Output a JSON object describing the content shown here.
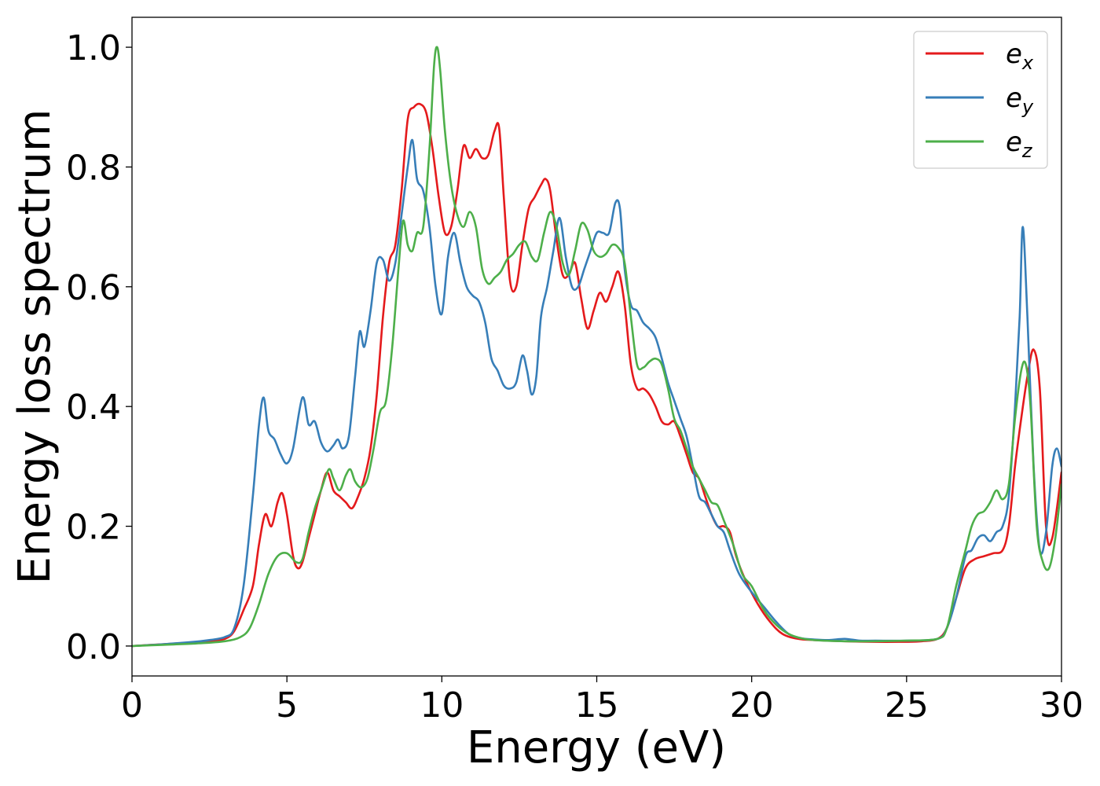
{
  "chart_data": {
    "type": "line",
    "xlabel": "Energy (eV)",
    "ylabel": "Energy loss spectrum",
    "xlim": [
      0,
      30
    ],
    "ylim": [
      -0.05,
      1.05
    ],
    "xticks": [
      0,
      5,
      10,
      15,
      20,
      25,
      30
    ],
    "xtick_labels": [
      "0",
      "5",
      "10",
      "15",
      "20",
      "25",
      "30"
    ],
    "yticks": [
      0.0,
      0.2,
      0.4,
      0.6,
      0.8,
      1.0
    ],
    "ytick_labels": [
      "0.0",
      "0.2",
      "0.4",
      "0.6",
      "0.8",
      "1.0"
    ],
    "grid": false,
    "legend_position": "top-right",
    "series": [
      {
        "name": "e_x",
        "label_base": "e",
        "label_sub": "x",
        "color": "#e41a1c",
        "x": [
          0,
          1,
          2,
          2.5,
          3,
          3.3,
          3.6,
          3.9,
          4.1,
          4.3,
          4.5,
          4.7,
          4.85,
          5.0,
          5.2,
          5.35,
          5.5,
          5.7,
          5.9,
          6.1,
          6.3,
          6.5,
          6.7,
          6.9,
          7.1,
          7.3,
          7.5,
          7.7,
          7.9,
          8.1,
          8.3,
          8.5,
          8.7,
          8.9,
          9.1,
          9.3,
          9.5,
          9.7,
          9.9,
          10.1,
          10.3,
          10.5,
          10.7,
          10.9,
          11.1,
          11.3,
          11.5,
          11.7,
          11.85,
          12.0,
          12.2,
          12.4,
          12.6,
          12.8,
          13.0,
          13.2,
          13.35,
          13.5,
          13.7,
          13.9,
          14.1,
          14.3,
          14.5,
          14.7,
          14.9,
          15.1,
          15.3,
          15.5,
          15.7,
          15.9,
          16.1,
          16.3,
          16.5,
          16.7,
          16.9,
          17.1,
          17.3,
          17.5,
          17.7,
          17.9,
          18.1,
          18.3,
          18.5,
          18.7,
          18.9,
          19.1,
          19.3,
          19.5,
          19.8,
          20.2,
          20.6,
          21.0,
          21.5,
          22,
          23,
          24,
          25,
          25.5,
          26,
          26.3,
          26.6,
          26.9,
          27.2,
          27.5,
          27.8,
          28.1,
          28.3,
          28.5,
          28.7,
          28.9,
          29.1,
          29.3,
          29.5,
          29.7,
          30
        ],
        "y": [
          0.0,
          0.003,
          0.006,
          0.008,
          0.012,
          0.025,
          0.06,
          0.1,
          0.17,
          0.22,
          0.2,
          0.24,
          0.255,
          0.22,
          0.15,
          0.13,
          0.14,
          0.18,
          0.22,
          0.26,
          0.29,
          0.26,
          0.25,
          0.24,
          0.23,
          0.25,
          0.28,
          0.33,
          0.42,
          0.55,
          0.64,
          0.67,
          0.76,
          0.88,
          0.9,
          0.905,
          0.89,
          0.83,
          0.75,
          0.69,
          0.7,
          0.76,
          0.835,
          0.815,
          0.83,
          0.815,
          0.82,
          0.86,
          0.865,
          0.75,
          0.61,
          0.6,
          0.67,
          0.73,
          0.75,
          0.77,
          0.78,
          0.76,
          0.68,
          0.62,
          0.62,
          0.64,
          0.58,
          0.53,
          0.56,
          0.59,
          0.575,
          0.6,
          0.625,
          0.57,
          0.47,
          0.43,
          0.43,
          0.42,
          0.4,
          0.375,
          0.37,
          0.375,
          0.35,
          0.32,
          0.29,
          0.28,
          0.25,
          0.22,
          0.2,
          0.2,
          0.19,
          0.15,
          0.11,
          0.07,
          0.04,
          0.02,
          0.012,
          0.01,
          0.008,
          0.007,
          0.007,
          0.008,
          0.012,
          0.03,
          0.08,
          0.13,
          0.145,
          0.15,
          0.155,
          0.16,
          0.2,
          0.3,
          0.38,
          0.45,
          0.495,
          0.43,
          0.2,
          0.18,
          0.29
        ]
      },
      {
        "name": "e_y",
        "label_base": "e",
        "label_sub": "y",
        "color": "#377eb8",
        "x": [
          0,
          1,
          2,
          2.5,
          3,
          3.3,
          3.6,
          3.9,
          4.1,
          4.25,
          4.4,
          4.6,
          4.8,
          5.0,
          5.2,
          5.5,
          5.7,
          5.9,
          6.1,
          6.3,
          6.5,
          6.65,
          6.8,
          7.0,
          7.2,
          7.35,
          7.5,
          7.7,
          7.9,
          8.1,
          8.3,
          8.5,
          8.7,
          8.9,
          9.05,
          9.2,
          9.4,
          9.6,
          9.8,
          10.0,
          10.2,
          10.4,
          10.6,
          10.8,
          11.0,
          11.2,
          11.4,
          11.6,
          11.8,
          12.0,
          12.2,
          12.4,
          12.6,
          12.75,
          12.9,
          13.05,
          13.2,
          13.4,
          13.6,
          13.8,
          14.0,
          14.2,
          14.4,
          14.6,
          14.8,
          15.0,
          15.2,
          15.4,
          15.6,
          15.75,
          15.9,
          16.1,
          16.3,
          16.5,
          16.7,
          16.9,
          17.1,
          17.3,
          17.5,
          17.7,
          17.9,
          18.1,
          18.3,
          18.5,
          18.7,
          18.9,
          19.1,
          19.3,
          19.6,
          20.0,
          20.4,
          20.8,
          21.2,
          21.6,
          22,
          22.5,
          23,
          23.5,
          24,
          25,
          26,
          26.3,
          26.6,
          26.9,
          27.1,
          27.3,
          27.5,
          27.7,
          27.9,
          28.1,
          28.3,
          28.5,
          28.65,
          28.75,
          28.9,
          29.1,
          29.3,
          29.5,
          29.7,
          29.85,
          30
        ],
        "y": [
          0.0,
          0.003,
          0.007,
          0.01,
          0.015,
          0.03,
          0.1,
          0.25,
          0.37,
          0.415,
          0.36,
          0.345,
          0.32,
          0.305,
          0.33,
          0.415,
          0.37,
          0.375,
          0.34,
          0.325,
          0.335,
          0.345,
          0.33,
          0.35,
          0.45,
          0.525,
          0.5,
          0.56,
          0.64,
          0.645,
          0.61,
          0.64,
          0.72,
          0.8,
          0.845,
          0.78,
          0.76,
          0.7,
          0.6,
          0.555,
          0.65,
          0.69,
          0.64,
          0.6,
          0.585,
          0.575,
          0.54,
          0.48,
          0.46,
          0.435,
          0.43,
          0.44,
          0.485,
          0.46,
          0.42,
          0.45,
          0.55,
          0.6,
          0.66,
          0.715,
          0.65,
          0.6,
          0.6,
          0.63,
          0.66,
          0.69,
          0.69,
          0.69,
          0.74,
          0.73,
          0.63,
          0.57,
          0.56,
          0.54,
          0.53,
          0.515,
          0.48,
          0.44,
          0.41,
          0.38,
          0.35,
          0.3,
          0.25,
          0.24,
          0.22,
          0.2,
          0.19,
          0.16,
          0.12,
          0.09,
          0.065,
          0.04,
          0.02,
          0.013,
          0.011,
          0.01,
          0.012,
          0.009,
          0.009,
          0.009,
          0.012,
          0.03,
          0.08,
          0.15,
          0.16,
          0.18,
          0.185,
          0.175,
          0.19,
          0.2,
          0.25,
          0.4,
          0.55,
          0.7,
          0.55,
          0.3,
          0.16,
          0.19,
          0.3,
          0.33,
          0.3
        ]
      },
      {
        "name": "e_z",
        "label_base": "e",
        "label_sub": "z",
        "color": "#4daf4a",
        "x": [
          0,
          1,
          2,
          3,
          3.5,
          3.8,
          4.1,
          4.4,
          4.7,
          5.0,
          5.3,
          5.5,
          5.7,
          5.9,
          6.1,
          6.35,
          6.5,
          6.7,
          6.9,
          7.05,
          7.2,
          7.4,
          7.6,
          7.8,
          8.0,
          8.2,
          8.4,
          8.6,
          8.75,
          8.9,
          9.05,
          9.2,
          9.4,
          9.6,
          9.75,
          9.85,
          9.95,
          10.1,
          10.3,
          10.5,
          10.7,
          10.9,
          11.1,
          11.3,
          11.5,
          11.7,
          11.9,
          12.1,
          12.3,
          12.5,
          12.7,
          12.9,
          13.1,
          13.3,
          13.5,
          13.7,
          13.9,
          14.1,
          14.3,
          14.5,
          14.7,
          14.9,
          15.1,
          15.3,
          15.5,
          15.7,
          15.9,
          16.1,
          16.3,
          16.5,
          16.7,
          16.9,
          17.1,
          17.3,
          17.5,
          17.7,
          17.9,
          18.1,
          18.3,
          18.5,
          18.7,
          18.9,
          19.1,
          19.4,
          19.7,
          20.0,
          20.4,
          20.8,
          21.2,
          21.6,
          22,
          23,
          24,
          25,
          26,
          26.3,
          26.6,
          26.9,
          27.1,
          27.3,
          27.5,
          27.7,
          27.9,
          28.1,
          28.3,
          28.5,
          28.7,
          28.85,
          29.0,
          29.2,
          29.4,
          29.6,
          29.8,
          30
        ],
        "y": [
          0.0,
          0.002,
          0.004,
          0.008,
          0.015,
          0.03,
          0.07,
          0.12,
          0.15,
          0.155,
          0.14,
          0.145,
          0.19,
          0.23,
          0.26,
          0.295,
          0.28,
          0.26,
          0.285,
          0.295,
          0.275,
          0.265,
          0.28,
          0.33,
          0.39,
          0.41,
          0.5,
          0.63,
          0.71,
          0.67,
          0.66,
          0.69,
          0.7,
          0.83,
          0.97,
          1.0,
          0.96,
          0.86,
          0.77,
          0.72,
          0.7,
          0.725,
          0.7,
          0.63,
          0.605,
          0.615,
          0.625,
          0.645,
          0.655,
          0.67,
          0.675,
          0.65,
          0.645,
          0.69,
          0.725,
          0.7,
          0.64,
          0.62,
          0.66,
          0.705,
          0.695,
          0.66,
          0.65,
          0.655,
          0.67,
          0.665,
          0.64,
          0.55,
          0.47,
          0.465,
          0.475,
          0.48,
          0.47,
          0.43,
          0.38,
          0.36,
          0.33,
          0.3,
          0.28,
          0.26,
          0.24,
          0.235,
          0.21,
          0.17,
          0.12,
          0.1,
          0.06,
          0.035,
          0.02,
          0.013,
          0.01,
          0.008,
          0.008,
          0.009,
          0.012,
          0.03,
          0.1,
          0.16,
          0.2,
          0.22,
          0.225,
          0.24,
          0.26,
          0.245,
          0.27,
          0.38,
          0.46,
          0.47,
          0.4,
          0.2,
          0.14,
          0.13,
          0.18,
          0.27
        ]
      }
    ]
  }
}
